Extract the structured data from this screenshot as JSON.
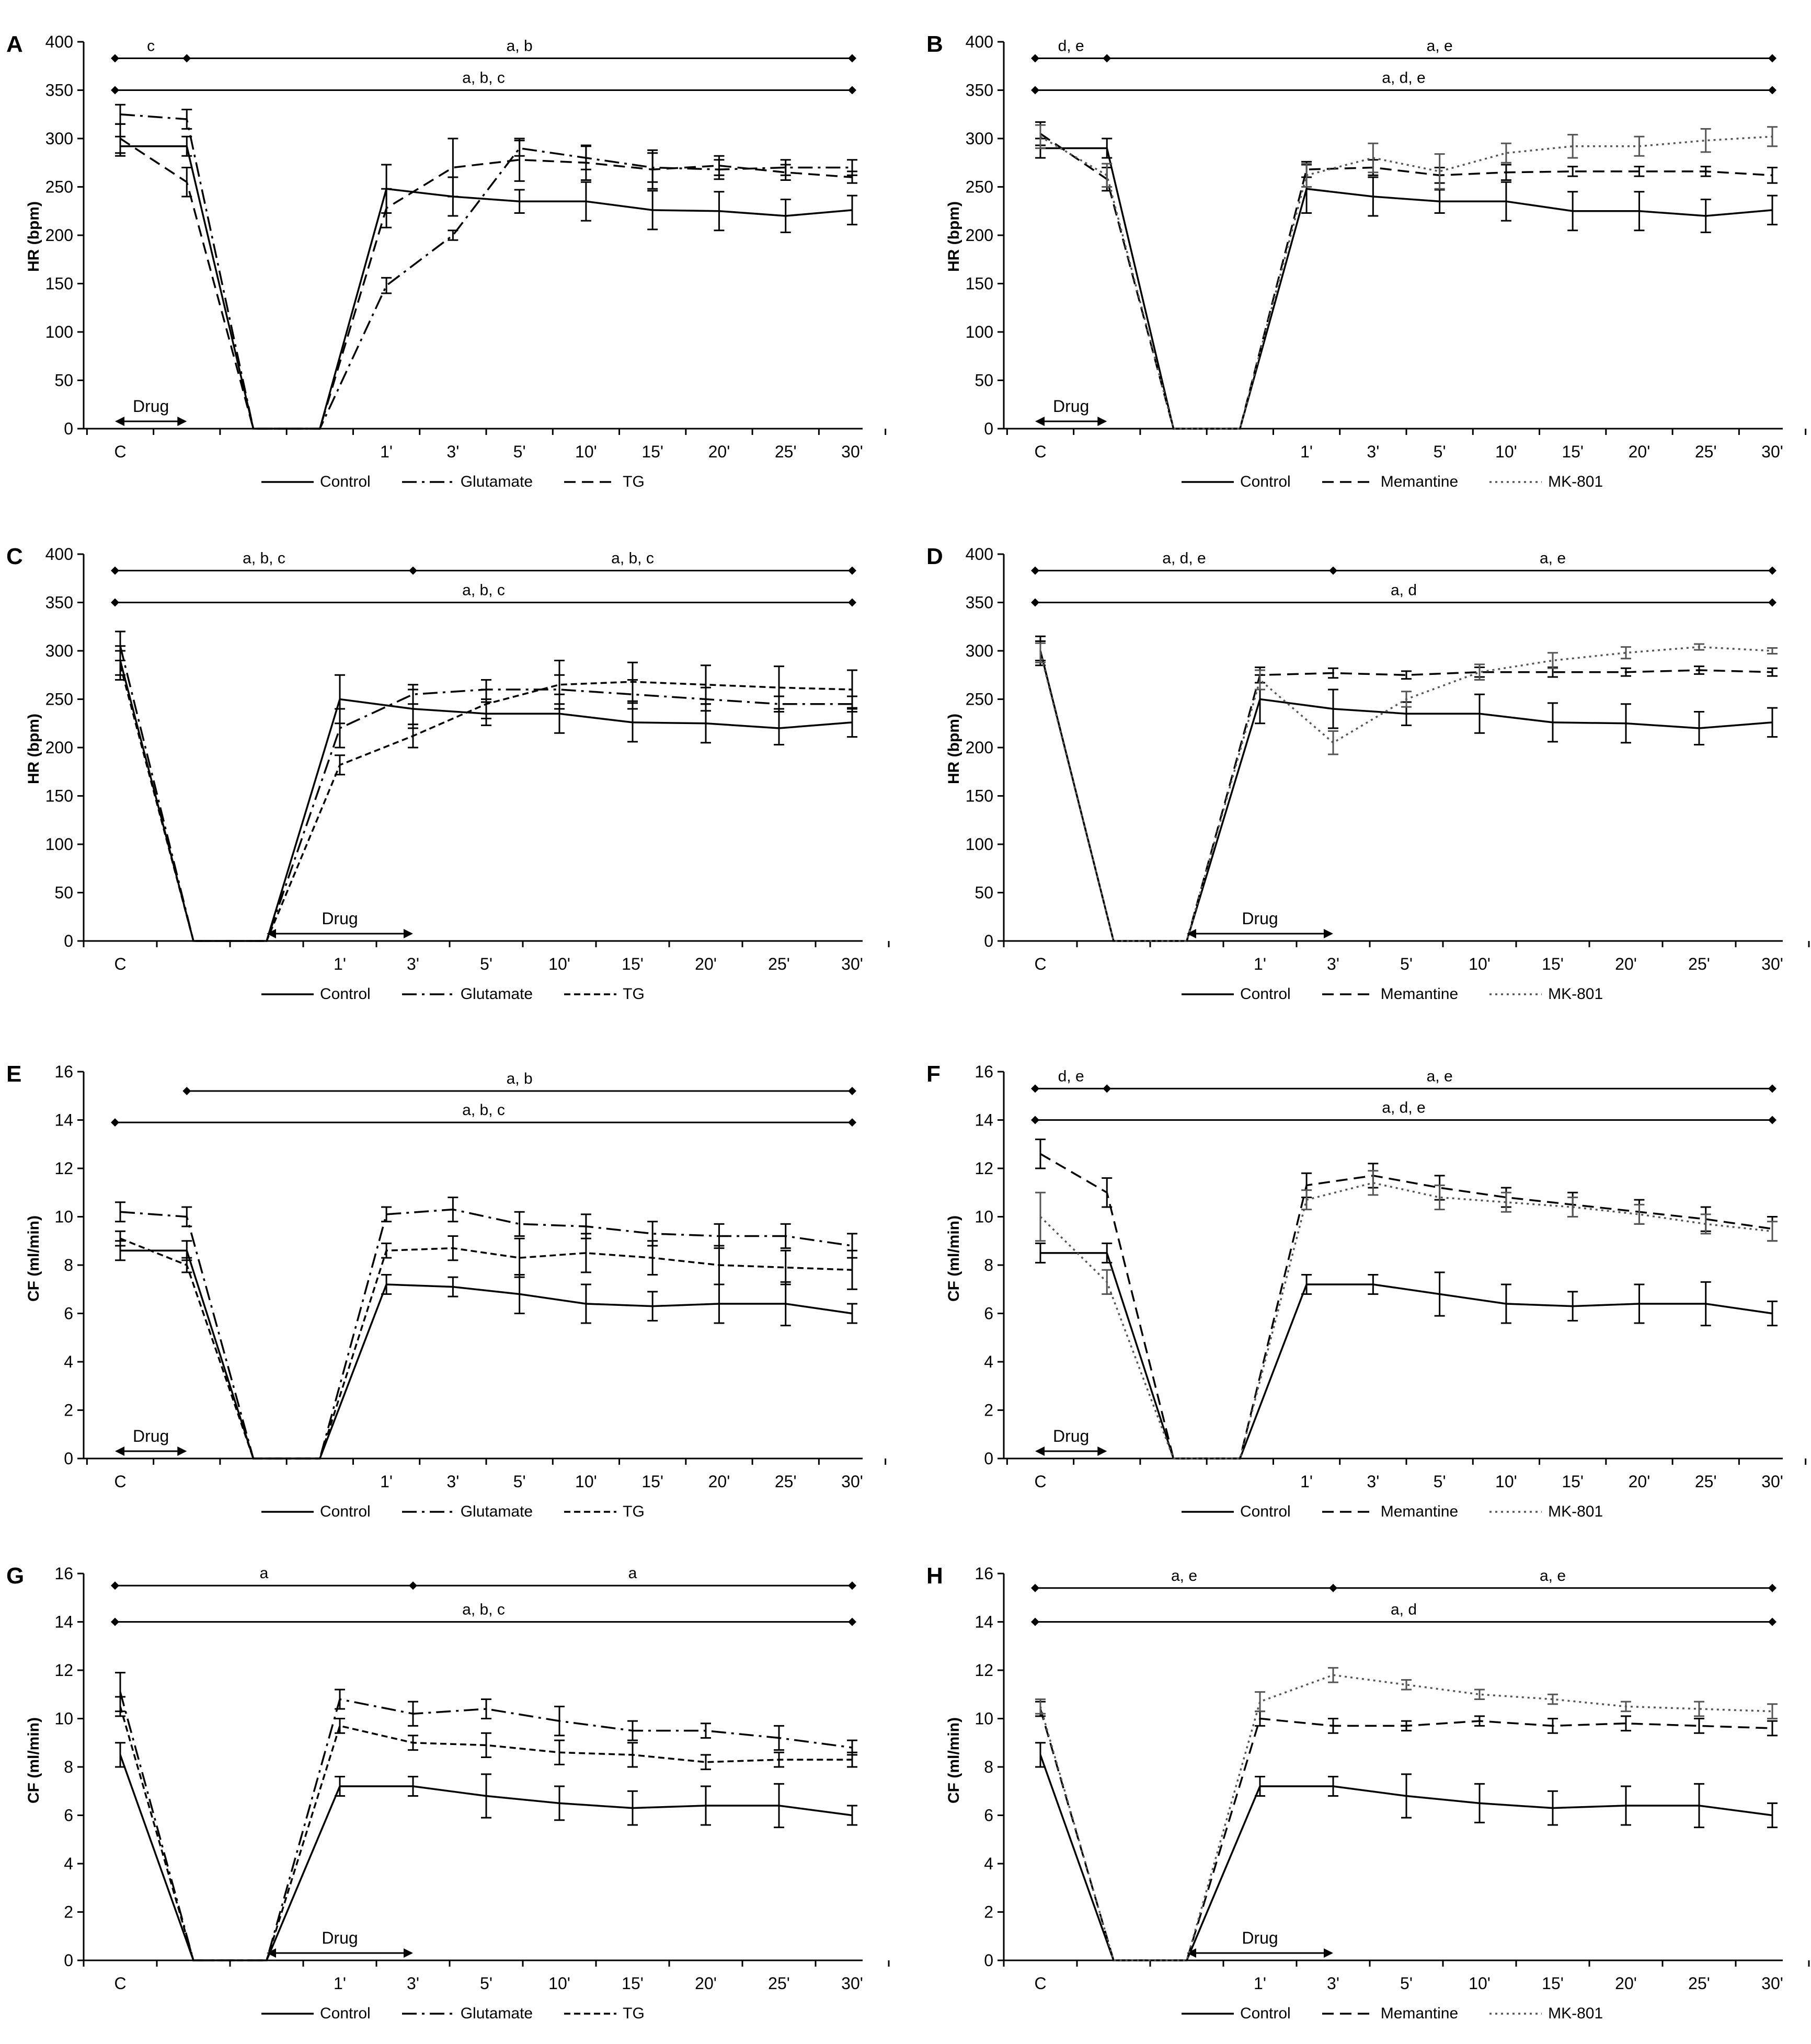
{
  "chart_data": [
    {
      "panel": "A",
      "type": "line",
      "ylabel": "HR (bpm)",
      "ylim": [
        0,
        400
      ],
      "ystep": 50,
      "categories": [
        "C",
        "",
        "",
        "",
        "1'",
        "3'",
        "5'",
        "10'",
        "15'",
        "20'",
        "25'",
        "30'"
      ],
      "drug": {
        "label": "Drug",
        "from": 0,
        "to": 1
      },
      "brackets": [
        {
          "label": "c",
          "y": 383,
          "from": 0,
          "mid": 1,
          "to": 11,
          "label2": "a, b"
        },
        {
          "label": "a, b, c",
          "y": 350,
          "from": 0,
          "to": 11
        }
      ],
      "series": [
        {
          "name": "Control",
          "style": "solid",
          "values": [
            292,
            292,
            0,
            0,
            248,
            240,
            235,
            235,
            226,
            225,
            220,
            226
          ],
          "err": [
            10,
            10,
            0,
            0,
            25,
            20,
            12,
            20,
            20,
            20,
            17,
            15
          ]
        },
        {
          "name": "Glutamate",
          "style": "dashdot",
          "values": [
            325,
            320,
            0,
            0,
            148,
            200,
            290,
            280,
            270,
            268,
            270,
            270
          ],
          "err": [
            10,
            10,
            0,
            0,
            8,
            5,
            8,
            12,
            15,
            10,
            8,
            8
          ]
        },
        {
          "name": "TG",
          "style": "dashed",
          "values": [
            300,
            255,
            0,
            0,
            228,
            270,
            278,
            275,
            268,
            272,
            265,
            260
          ],
          "err": [
            15,
            15,
            0,
            0,
            20,
            30,
            22,
            18,
            20,
            10,
            8,
            6
          ]
        }
      ]
    },
    {
      "panel": "B",
      "type": "line",
      "ylabel": "HR (bpm)",
      "ylim": [
        0,
        400
      ],
      "ystep": 50,
      "categories": [
        "C",
        "",
        "",
        "",
        "1'",
        "3'",
        "5'",
        "10'",
        "15'",
        "20'",
        "25'",
        "30'"
      ],
      "drug": {
        "label": "Drug",
        "from": 0,
        "to": 1
      },
      "brackets": [
        {
          "label": "d, e",
          "y": 383,
          "from": 0,
          "mid": 1,
          "to": 11,
          "label2": "a, e"
        },
        {
          "label": "a, d, e",
          "y": 350,
          "from": 0,
          "to": 11
        }
      ],
      "series": [
        {
          "name": "Control",
          "style": "solid",
          "values": [
            290,
            290,
            0,
            0,
            248,
            240,
            235,
            235,
            225,
            225,
            220,
            226
          ],
          "err": [
            10,
            10,
            0,
            0,
            25,
            20,
            12,
            20,
            20,
            20,
            17,
            15
          ]
        },
        {
          "name": "Memantine",
          "style": "dashed",
          "values": [
            305,
            258,
            0,
            0,
            268,
            270,
            262,
            265,
            266,
            266,
            266,
            262
          ],
          "err": [
            12,
            12,
            0,
            0,
            8,
            8,
            8,
            8,
            5,
            5,
            5,
            8
          ]
        },
        {
          "name": "MK-801",
          "style": "dotted",
          "values": [
            302,
            262,
            0,
            0,
            262,
            280,
            266,
            285,
            292,
            292,
            298,
            302
          ],
          "err": [
            12,
            12,
            0,
            0,
            12,
            15,
            18,
            10,
            12,
            10,
            12,
            10
          ]
        }
      ]
    },
    {
      "panel": "C",
      "type": "line",
      "ylabel": "HR (bpm)",
      "ylim": [
        0,
        400
      ],
      "ystep": 50,
      "categories": [
        "C",
        "",
        "",
        "1'",
        "3'",
        "5'",
        "10'",
        "15'",
        "20'",
        "25'",
        "30'"
      ],
      "drug": {
        "label": "Drug",
        "from": 2,
        "to": 4
      },
      "brackets": [
        {
          "label": "a, b, c",
          "y": 383,
          "from": 0,
          "mid": 4,
          "to": 10,
          "label2": "a, b, c"
        },
        {
          "label": "a, b, c",
          "y": 350,
          "from": 0,
          "to": 10
        }
      ],
      "series": [
        {
          "name": "Control",
          "style": "solid",
          "values": [
            290,
            0,
            0,
            250,
            240,
            235,
            235,
            226,
            225,
            220,
            226
          ],
          "err": [
            15,
            0,
            0,
            25,
            20,
            12,
            20,
            20,
            20,
            17,
            15
          ]
        },
        {
          "name": "Glutamate",
          "style": "dashdot",
          "values": [
            305,
            0,
            0,
            220,
            255,
            260,
            260,
            255,
            250,
            245,
            245
          ],
          "err": [
            15,
            0,
            0,
            20,
            10,
            10,
            15,
            15,
            12,
            8,
            8
          ]
        },
        {
          "name": "TG",
          "style": "densedash",
          "values": [
            285,
            0,
            0,
            182,
            212,
            245,
            265,
            268,
            265,
            262,
            260
          ],
          "err": [
            15,
            0,
            0,
            10,
            12,
            15,
            25,
            20,
            20,
            22,
            20
          ]
        }
      ]
    },
    {
      "panel": "D",
      "type": "line",
      "ylabel": "HR (bpm)",
      "ylim": [
        0,
        400
      ],
      "ystep": 50,
      "categories": [
        "C",
        "",
        "",
        "1'",
        "3'",
        "5'",
        "10'",
        "15'",
        "20'",
        "25'",
        "30'"
      ],
      "drug": {
        "label": "Drug",
        "from": 2,
        "to": 4
      },
      "brackets": [
        {
          "label": "a, d, e",
          "y": 383,
          "from": 0,
          "mid": 4,
          "to": 10,
          "label2": "a, e"
        },
        {
          "label": "a, d",
          "y": 350,
          "from": 0,
          "to": 10
        }
      ],
      "series": [
        {
          "name": "Control",
          "style": "solid",
          "values": [
            300,
            0,
            0,
            250,
            240,
            235,
            235,
            226,
            225,
            220,
            226
          ],
          "err": [
            15,
            0,
            0,
            25,
            20,
            12,
            20,
            20,
            20,
            17,
            15
          ]
        },
        {
          "name": "Memantine",
          "style": "dashed",
          "values": [
            300,
            0,
            0,
            275,
            277,
            275,
            278,
            278,
            278,
            280,
            278
          ],
          "err": [
            10,
            0,
            0,
            8,
            5,
            4,
            5,
            5,
            4,
            4,
            4
          ]
        },
        {
          "name": "MK-801",
          "style": "dotted",
          "values": [
            298,
            0,
            0,
            270,
            205,
            250,
            278,
            290,
            298,
            304,
            300
          ],
          "err": [
            10,
            0,
            0,
            10,
            12,
            8,
            8,
            8,
            6,
            3,
            3
          ]
        }
      ]
    },
    {
      "panel": "E",
      "type": "line",
      "ylabel": "CF (ml/min)",
      "ylim": [
        0,
        16
      ],
      "ystep": 2,
      "categories": [
        "C",
        "",
        "",
        "",
        "1'",
        "3'",
        "5'",
        "10'",
        "15'",
        "20'",
        "25'",
        "30'"
      ],
      "drug": {
        "label": "Drug",
        "from": 0,
        "to": 1
      },
      "brackets": [
        {
          "label": "a, b",
          "y": 15.2,
          "from": 1,
          "to": 11
        },
        {
          "label": "a, b, c",
          "y": 13.9,
          "from": 0,
          "to": 11
        }
      ],
      "series": [
        {
          "name": "Control",
          "style": "solid",
          "values": [
            8.6,
            8.6,
            0,
            0,
            7.2,
            7.1,
            6.8,
            6.4,
            6.3,
            6.4,
            6.4,
            6.0
          ],
          "err": [
            0.4,
            0.4,
            0,
            0,
            0.4,
            0.4,
            0.8,
            0.8,
            0.6,
            0.8,
            0.9,
            0.4
          ]
        },
        {
          "name": "Glutamate",
          "style": "dashdot",
          "values": [
            10.2,
            10.0,
            0,
            0,
            10.1,
            10.3,
            9.7,
            9.6,
            9.3,
            9.2,
            9.2,
            8.8
          ],
          "err": [
            0.4,
            0.4,
            0,
            0,
            0.3,
            0.5,
            0.5,
            0.5,
            0.5,
            0.5,
            0.5,
            0.5
          ]
        },
        {
          "name": "TG",
          "style": "densedash",
          "values": [
            9.1,
            8.0,
            0,
            0,
            8.6,
            8.7,
            8.3,
            8.5,
            8.3,
            8.0,
            7.9,
            7.8
          ],
          "err": [
            0.3,
            0.3,
            0,
            0,
            0.3,
            0.5,
            0.8,
            0.8,
            0.7,
            0.8,
            0.7,
            0.8
          ]
        }
      ]
    },
    {
      "panel": "F",
      "type": "line",
      "ylabel": "CF (ml/min)",
      "ylim": [
        0,
        16
      ],
      "ystep": 2,
      "categories": [
        "C",
        "",
        "",
        "",
        "1'",
        "3'",
        "5'",
        "10'",
        "15'",
        "20'",
        "25'",
        "30'"
      ],
      "drug": {
        "label": "Drug",
        "from": 0,
        "to": 1
      },
      "brackets": [
        {
          "label": "d, e",
          "y": 15.3,
          "from": 0,
          "mid": 1,
          "to": 11,
          "label2": "a, e"
        },
        {
          "label": "a, d, e",
          "y": 14.0,
          "from": 0,
          "to": 11
        }
      ],
      "series": [
        {
          "name": "Control",
          "style": "solid",
          "values": [
            8.5,
            8.5,
            0,
            0,
            7.2,
            7.2,
            6.8,
            6.4,
            6.3,
            6.4,
            6.4,
            6.0
          ],
          "err": [
            0.4,
            0.4,
            0,
            0,
            0.4,
            0.4,
            0.9,
            0.8,
            0.6,
            0.8,
            0.9,
            0.5
          ]
        },
        {
          "name": "Memantine",
          "style": "dashed",
          "values": [
            12.6,
            11.0,
            0,
            0,
            11.3,
            11.7,
            11.2,
            10.8,
            10.5,
            10.2,
            9.9,
            9.5
          ],
          "err": [
            0.6,
            0.6,
            0,
            0,
            0.5,
            0.5,
            0.5,
            0.4,
            0.5,
            0.5,
            0.5,
            0.5
          ]
        },
        {
          "name": "MK-801",
          "style": "dotted",
          "values": [
            10.0,
            7.3,
            0,
            0,
            10.7,
            11.4,
            10.8,
            10.6,
            10.4,
            10.1,
            9.7,
            9.4
          ],
          "err": [
            1.0,
            0.5,
            0,
            0,
            0.4,
            0.5,
            0.5,
            0.4,
            0.4,
            0.4,
            0.4,
            0.4
          ]
        }
      ]
    },
    {
      "panel": "G",
      "type": "line",
      "ylabel": "CF (ml/min)",
      "ylim": [
        0,
        16
      ],
      "ystep": 2,
      "categories": [
        "C",
        "",
        "",
        "1'",
        "3'",
        "5'",
        "10'",
        "15'",
        "20'",
        "25'",
        "30'"
      ],
      "drug": {
        "label": "Drug",
        "from": 2,
        "to": 4
      },
      "brackets": [
        {
          "label": "a",
          "y": 15.5,
          "from": 0,
          "mid": 4,
          "to": 10,
          "label2": "a"
        },
        {
          "label": "a, b, c",
          "y": 14.0,
          "from": 0,
          "to": 10
        }
      ],
      "series": [
        {
          "name": "Control",
          "style": "solid",
          "values": [
            8.5,
            0,
            0,
            7.2,
            7.2,
            6.8,
            6.5,
            6.3,
            6.4,
            6.4,
            6.0
          ],
          "err": [
            0.5,
            0,
            0,
            0.4,
            0.4,
            0.9,
            0.7,
            0.7,
            0.8,
            0.9,
            0.4
          ]
        },
        {
          "name": "Glutamate",
          "style": "dashdot",
          "values": [
            11.1,
            0,
            0,
            10.8,
            10.2,
            10.4,
            9.9,
            9.5,
            9.5,
            9.2,
            8.8
          ],
          "err": [
            0.8,
            0,
            0,
            0.4,
            0.5,
            0.4,
            0.6,
            0.4,
            0.3,
            0.5,
            0.3
          ]
        },
        {
          "name": "TG",
          "style": "densedash",
          "values": [
            10.5,
            0,
            0,
            9.7,
            9.0,
            8.9,
            8.6,
            8.5,
            8.2,
            8.3,
            8.3
          ],
          "err": [
            0.4,
            0,
            0,
            0.3,
            0.3,
            0.5,
            0.5,
            0.5,
            0.3,
            0.3,
            0.3
          ]
        }
      ]
    },
    {
      "panel": "H",
      "type": "line",
      "ylabel": "CF (ml/min)",
      "ylim": [
        0,
        16
      ],
      "ystep": 2,
      "categories": [
        "C",
        "",
        "",
        "1'",
        "3'",
        "5'",
        "10'",
        "15'",
        "20'",
        "25'",
        "30'"
      ],
      "drug": {
        "label": "Drug",
        "from": 2,
        "to": 4
      },
      "brackets": [
        {
          "label": "a, e",
          "y": 15.4,
          "from": 0,
          "mid": 4,
          "to": 10,
          "label2": "a, e"
        },
        {
          "label": "a, d",
          "y": 14.0,
          "from": 0,
          "to": 10
        }
      ],
      "series": [
        {
          "name": "Control",
          "style": "solid",
          "values": [
            8.5,
            0,
            0,
            7.2,
            7.2,
            6.8,
            6.5,
            6.3,
            6.4,
            6.4,
            6.0
          ],
          "err": [
            0.5,
            0,
            0,
            0.4,
            0.4,
            0.9,
            0.8,
            0.7,
            0.8,
            0.9,
            0.5
          ]
        },
        {
          "name": "Memantine",
          "style": "dashed",
          "values": [
            10.4,
            0,
            0,
            10.0,
            9.7,
            9.7,
            9.9,
            9.7,
            9.8,
            9.7,
            9.6
          ],
          "err": [
            0.3,
            0,
            0,
            0.3,
            0.3,
            0.2,
            0.2,
            0.3,
            0.3,
            0.3,
            0.3
          ]
        },
        {
          "name": "MK-801",
          "style": "dotted",
          "values": [
            10.5,
            0,
            0,
            10.7,
            11.8,
            11.4,
            11.0,
            10.8,
            10.5,
            10.4,
            10.3
          ],
          "err": [
            0.3,
            0,
            0,
            0.4,
            0.3,
            0.2,
            0.2,
            0.2,
            0.2,
            0.3,
            0.3
          ]
        }
      ]
    }
  ]
}
